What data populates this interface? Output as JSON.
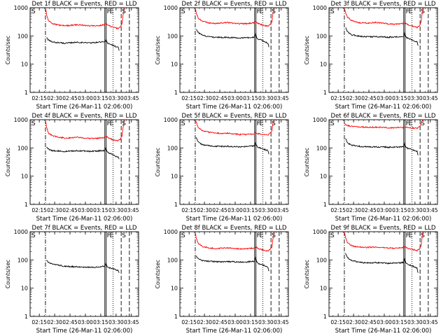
{
  "colors": {
    "events": "#000000",
    "lld": "#ff0000",
    "axis": "#000000",
    "background": "#ffffff"
  },
  "chart_data": [
    {
      "type": "line",
      "title": "Det 1f BLACK = Events, RED = LLD",
      "xlabel": "Start Time (26-Mar-11 02:06:00)",
      "ylabel": "Counts/sec",
      "x_unit": "minutes since 02:06:00",
      "x_ticks": [
        "02:15",
        "02:30",
        "02:45",
        "03:00",
        "03:15",
        "03:30",
        "03:45"
      ],
      "xlim": [
        0,
        106
      ],
      "y_ticks": [
        "1",
        "10",
        "100",
        "1000"
      ],
      "ylim": [
        1,
        1000
      ],
      "y_scale": "log",
      "markers": [
        "S",
        "F",
        "E",
        "S"
      ],
      "series": [
        {
          "name": "Events",
          "x": [
            16,
            18,
            22,
            28,
            34,
            40,
            46,
            52,
            58,
            64,
            70,
            73,
            74,
            75,
            76,
            78,
            80,
            82,
            84,
            86,
            87
          ],
          "values": [
            90,
            70,
            60,
            58,
            55,
            57,
            60,
            58,
            57,
            58,
            62,
            60,
            75,
            62,
            55,
            52,
            48,
            45,
            42,
            40,
            30
          ]
        },
        {
          "name": "LLD",
          "x": [
            15,
            16,
            18,
            22,
            28,
            34,
            40,
            46,
            52,
            58,
            64,
            70,
            73,
            74,
            76,
            80,
            84,
            86,
            88,
            90,
            91,
            92
          ],
          "values": [
            1000,
            600,
            340,
            270,
            240,
            230,
            240,
            250,
            240,
            230,
            225,
            240,
            260,
            290,
            240,
            210,
            190,
            180,
            200,
            290,
            600,
            1000
          ]
        }
      ]
    },
    {
      "type": "line",
      "title": "Det 2f BLACK = Events, RED = LLD",
      "xlabel": "Start Time (26-Mar-11 02:06:00)",
      "ylabel": "Counts/sec",
      "x_unit": "minutes since 02:06:00",
      "x_ticks": [
        "02:15",
        "02:30",
        "02:45",
        "03:00",
        "03:15",
        "03:30",
        "03:45"
      ],
      "xlim": [
        0,
        106
      ],
      "y_ticks": [
        "1",
        "10",
        "100",
        "1000"
      ],
      "ylim": [
        1,
        1000
      ],
      "y_scale": "log",
      "markers": [
        "S",
        "F",
        "E",
        "S"
      ],
      "series": [
        {
          "name": "Events",
          "x": [
            16,
            18,
            22,
            28,
            34,
            40,
            46,
            52,
            58,
            64,
            70,
            73,
            74,
            75,
            76,
            78,
            80,
            82,
            84,
            86,
            87
          ],
          "values": [
            180,
            130,
            105,
            95,
            90,
            88,
            90,
            87,
            85,
            86,
            88,
            90,
            120,
            90,
            80,
            75,
            70,
            65,
            60,
            55,
            40
          ]
        },
        {
          "name": "LLD",
          "x": [
            15,
            16,
            18,
            22,
            28,
            34,
            40,
            46,
            52,
            58,
            64,
            70,
            73,
            74,
            76,
            80,
            84,
            86,
            88,
            90,
            91,
            92
          ],
          "values": [
            1000,
            650,
            420,
            330,
            290,
            280,
            290,
            300,
            285,
            275,
            270,
            285,
            300,
            340,
            280,
            250,
            230,
            220,
            240,
            320,
            650,
            1000
          ]
        }
      ]
    },
    {
      "type": "line",
      "title": "Det 3f BLACK = Events, RED = LLD",
      "xlabel": "Start Time (26-Mar-11 02:06:00)",
      "ylabel": "Counts/sec",
      "x_unit": "minutes since 02:06:00",
      "x_ticks": [
        "02:15",
        "02:30",
        "02:45",
        "03:00",
        "03:15",
        "03:30",
        "03:45"
      ],
      "xlim": [
        0,
        106
      ],
      "y_ticks": [
        "1",
        "10",
        "100",
        "1000"
      ],
      "ylim": [
        1,
        1000
      ],
      "y_scale": "log",
      "markers": [
        "S",
        "F",
        "E",
        "S"
      ],
      "series": [
        {
          "name": "Events",
          "x": [
            16,
            18,
            22,
            28,
            34,
            40,
            46,
            52,
            58,
            64,
            70,
            73,
            74,
            75,
            76,
            78,
            80,
            82,
            84,
            86,
            87
          ],
          "values": [
            200,
            140,
            110,
            100,
            95,
            93,
            95,
            92,
            90,
            91,
            94,
            95,
            130,
            95,
            85,
            80,
            75,
            70,
            65,
            60,
            45
          ]
        },
        {
          "name": "LLD",
          "x": [
            15,
            16,
            18,
            22,
            28,
            34,
            40,
            46,
            52,
            58,
            64,
            70,
            73,
            74,
            76,
            80,
            84,
            86,
            88,
            90,
            91,
            92
          ],
          "values": [
            1000,
            700,
            460,
            350,
            300,
            285,
            290,
            300,
            285,
            270,
            260,
            270,
            280,
            300,
            260,
            230,
            210,
            200,
            220,
            300,
            650,
            1000
          ]
        }
      ]
    },
    {
      "type": "line",
      "title": "Det 4f BLACK = Events, RED = LLD",
      "xlabel": "Start Time (26-Mar-11 02:06:00)",
      "ylabel": "Counts/sec",
      "x_unit": "minutes since 02:06:00",
      "x_ticks": [
        "02:15",
        "02:30",
        "02:45",
        "03:00",
        "03:15",
        "03:30",
        "03:45"
      ],
      "xlim": [
        0,
        106
      ],
      "y_ticks": [
        "1",
        "10",
        "100",
        "1000"
      ],
      "ylim": [
        1,
        1000
      ],
      "y_scale": "log",
      "markers": [
        "S",
        "F",
        "E",
        "S"
      ],
      "series": [
        {
          "name": "Events",
          "x": [
            16,
            18,
            22,
            28,
            34,
            40,
            46,
            52,
            58,
            64,
            70,
            73,
            74,
            75,
            76,
            78,
            80,
            82,
            84,
            86,
            87
          ],
          "values": [
            110,
            90,
            80,
            78,
            75,
            77,
            80,
            78,
            76,
            78,
            80,
            82,
            100,
            80,
            70,
            65,
            60,
            55,
            50,
            48,
            40
          ]
        },
        {
          "name": "LLD",
          "x": [
            15,
            16,
            18,
            22,
            28,
            34,
            40,
            46,
            52,
            58,
            64,
            70,
            73,
            74,
            76,
            80,
            84,
            86,
            88,
            90,
            91,
            92
          ],
          "values": [
            1000,
            550,
            330,
            270,
            240,
            225,
            230,
            240,
            230,
            220,
            215,
            230,
            240,
            270,
            230,
            200,
            185,
            180,
            200,
            280,
            600,
            1000
          ]
        }
      ]
    },
    {
      "type": "line",
      "title": "Det 5f BLACK = Events, RED = LLD",
      "xlabel": "Start Time (26-Mar-11 02:06:00)",
      "ylabel": "Counts/sec",
      "x_unit": "minutes since 02:06:00",
      "x_ticks": [
        "02:15",
        "02:30",
        "02:45",
        "03:00",
        "03:15",
        "03:30",
        "03:45"
      ],
      "xlim": [
        0,
        106
      ],
      "y_ticks": [
        "1",
        "10",
        "100",
        "1000"
      ],
      "ylim": [
        1,
        1000
      ],
      "y_scale": "log",
      "markers": [
        "S",
        "F",
        "E",
        "S"
      ],
      "series": [
        {
          "name": "Events",
          "x": [
            16,
            18,
            22,
            28,
            34,
            40,
            46,
            52,
            58,
            64,
            70,
            73,
            74,
            75,
            76,
            78,
            80,
            82,
            84,
            86,
            87
          ],
          "values": [
            240,
            160,
            130,
            120,
            115,
            112,
            115,
            112,
            110,
            112,
            115,
            118,
            160,
            118,
            105,
            100,
            95,
            90,
            85,
            80,
            60
          ]
        },
        {
          "name": "LLD",
          "x": [
            15,
            16,
            18,
            22,
            28,
            34,
            40,
            46,
            52,
            58,
            64,
            70,
            73,
            74,
            76,
            80,
            84,
            86,
            88,
            90,
            91,
            92
          ],
          "values": [
            1000,
            800,
            520,
            410,
            360,
            340,
            330,
            330,
            315,
            300,
            300,
            310,
            320,
            360,
            320,
            300,
            290,
            290,
            320,
            420,
            750,
            1000
          ]
        }
      ]
    },
    {
      "type": "line",
      "title": "Det 6f BLACK = Events, RED = LLD",
      "xlabel": "Start Time (26-Mar-11 02:06:00)",
      "ylabel": "Counts/sec",
      "x_unit": "minutes since 02:06:00",
      "x_ticks": [
        "02:15",
        "02:30",
        "02:45",
        "03:00",
        "03:15",
        "03:30",
        "03:45"
      ],
      "xlim": [
        0,
        106
      ],
      "y_ticks": [
        "1",
        "10",
        "100",
        "1000"
      ],
      "ylim": [
        1,
        1000
      ],
      "y_scale": "log",
      "markers": [
        "S",
        "F",
        "E",
        "S"
      ],
      "series": [
        {
          "name": "Events",
          "x": [
            16,
            18,
            22,
            28,
            34,
            40,
            46,
            52,
            58,
            64,
            70,
            73,
            74,
            75,
            76,
            78,
            80,
            82,
            84,
            86,
            87
          ],
          "values": [
            220,
            150,
            125,
            115,
            110,
            108,
            110,
            108,
            106,
            107,
            110,
            112,
            150,
            112,
            100,
            95,
            90,
            85,
            80,
            75,
            55
          ]
        },
        {
          "name": "LLD",
          "x": [
            15,
            16,
            18,
            22,
            28,
            34,
            40,
            46,
            52,
            58,
            64,
            70,
            73,
            74,
            76,
            80,
            84,
            86,
            88,
            90,
            91,
            92
          ],
          "values": [
            750,
            680,
            620,
            580,
            560,
            545,
            540,
            540,
            530,
            525,
            520,
            525,
            535,
            560,
            530,
            515,
            505,
            500,
            540,
            700,
            900,
            1000
          ]
        }
      ]
    },
    {
      "type": "line",
      "title": "Det 7f BLACK = Events, RED = LLD",
      "xlabel": "Start Time (26-Mar-11 02:06:00)",
      "ylabel": "Counts/sec",
      "x_unit": "minutes since 02:06:00",
      "x_ticks": [
        "02:15",
        "02:30",
        "02:45",
        "03:00",
        "03:15",
        "03:30",
        "03:45"
      ],
      "xlim": [
        0,
        106
      ],
      "y_ticks": [
        "1",
        "10",
        "100",
        "1000"
      ],
      "ylim": [
        1,
        1000
      ],
      "y_scale": "log",
      "markers": [
        "S",
        "F",
        "E",
        "S"
      ],
      "series": [
        {
          "name": "Events",
          "x": [
            16,
            18,
            22,
            28,
            34,
            40,
            46,
            52,
            58,
            64,
            70,
            73,
            74,
            75,
            76,
            78,
            80,
            82,
            84,
            86,
            87
          ],
          "values": [
            100,
            80,
            70,
            65,
            60,
            58,
            57,
            56,
            55,
            56,
            58,
            60,
            75,
            60,
            55,
            52,
            50,
            48,
            45,
            42,
            35
          ]
        }
      ]
    },
    {
      "type": "line",
      "title": "Det 8f BLACK = Events, RED = LLD",
      "xlabel": "Start Time (26-Mar-11 02:06:00)",
      "ylabel": "Counts/sec",
      "x_unit": "minutes since 02:06:00",
      "x_ticks": [
        "02:15",
        "02:30",
        "02:45",
        "03:00",
        "03:15",
        "03:30",
        "03:45"
      ],
      "xlim": [
        0,
        106
      ],
      "y_ticks": [
        "1",
        "10",
        "100",
        "1000"
      ],
      "ylim": [
        1,
        1000
      ],
      "y_scale": "log",
      "markers": [
        "S",
        "F",
        "E",
        "S"
      ],
      "series": [
        {
          "name": "Events",
          "x": [
            16,
            18,
            22,
            28,
            34,
            40,
            46,
            52,
            58,
            64,
            70,
            73,
            74,
            75,
            76,
            78,
            80,
            82,
            84,
            86,
            87
          ],
          "values": [
            140,
            110,
            95,
            90,
            87,
            85,
            88,
            86,
            84,
            85,
            88,
            90,
            120,
            88,
            78,
            72,
            68,
            64,
            60,
            55,
            40
          ]
        },
        {
          "name": "LLD",
          "x": [
            15,
            16,
            18,
            22,
            28,
            34,
            40,
            46,
            52,
            58,
            64,
            70,
            73,
            74,
            76,
            80,
            84,
            86,
            88,
            90,
            91,
            92
          ],
          "values": [
            1000,
            600,
            380,
            300,
            270,
            255,
            260,
            270,
            260,
            250,
            245,
            260,
            270,
            300,
            255,
            230,
            215,
            210,
            230,
            300,
            620,
            1000
          ]
        }
      ]
    },
    {
      "type": "line",
      "title": "Det 9f BLACK = Events, RED = LLD",
      "xlabel": "Start Time (26-Mar-11 02:06:00)",
      "ylabel": "Counts/sec",
      "x_unit": "minutes since 02:06:00",
      "x_ticks": [
        "02:15",
        "02:30",
        "02:45",
        "03:00",
        "03:15",
        "03:30",
        "03:45"
      ],
      "xlim": [
        0,
        106
      ],
      "y_ticks": [
        "1",
        "10",
        "100",
        "1000"
      ],
      "ylim": [
        1,
        1000
      ],
      "y_scale": "log",
      "markers": [
        "S",
        "F",
        "E",
        "S"
      ],
      "series": [
        {
          "name": "Events",
          "x": [
            16,
            18,
            22,
            28,
            34,
            40,
            46,
            52,
            58,
            64,
            70,
            73,
            74,
            75,
            76,
            78,
            80,
            82,
            84,
            86,
            87
          ],
          "values": [
            170,
            120,
            95,
            85,
            80,
            78,
            80,
            78,
            76,
            77,
            80,
            82,
            110,
            80,
            72,
            68,
            64,
            60,
            55,
            50,
            35
          ]
        },
        {
          "name": "LLD",
          "x": [
            15,
            16,
            18,
            22,
            28,
            34,
            40,
            46,
            52,
            58,
            64,
            70,
            73,
            74,
            76,
            80,
            84,
            86,
            88,
            90,
            91,
            92
          ],
          "values": [
            1000,
            650,
            400,
            320,
            290,
            275,
            280,
            285,
            275,
            265,
            260,
            270,
            280,
            310,
            265,
            240,
            225,
            215,
            235,
            310,
            640,
            1000
          ]
        }
      ]
    }
  ]
}
